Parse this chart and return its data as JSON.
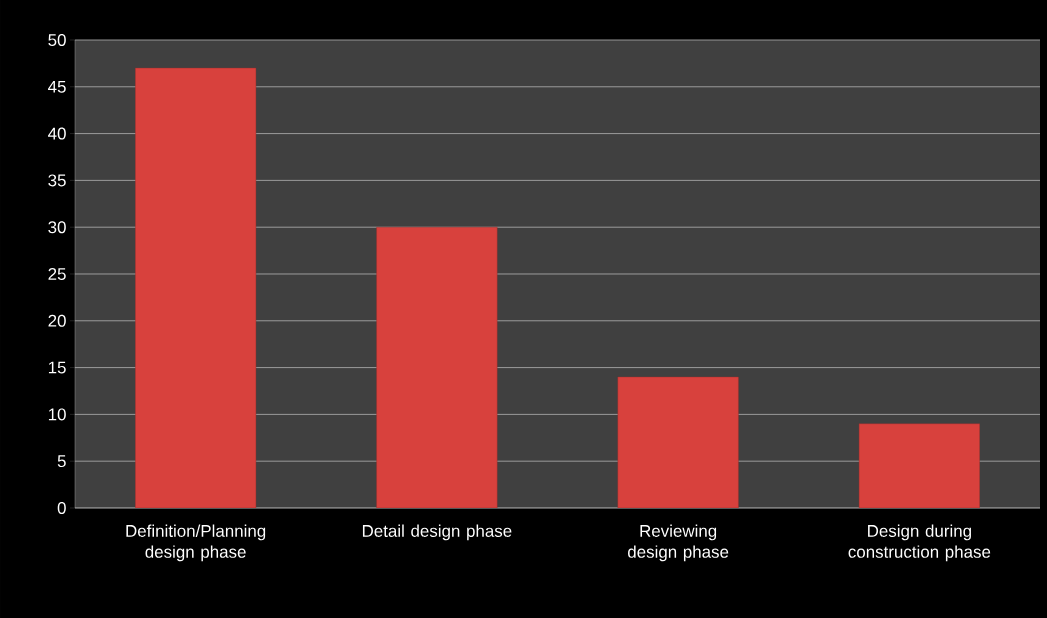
{
  "chart_data": {
    "type": "bar",
    "categories": [
      "Definition/Planning design phase",
      "Detail design phase",
      "Reviewing design phase",
      "Design during construction phase"
    ],
    "values": [
      47,
      30,
      14,
      9
    ],
    "color": "#d8413d",
    "ylim": [
      0,
      50
    ],
    "yticks": [
      0,
      5,
      10,
      15,
      20,
      25,
      30,
      35,
      40,
      45,
      50
    ],
    "grid": "y"
  }
}
